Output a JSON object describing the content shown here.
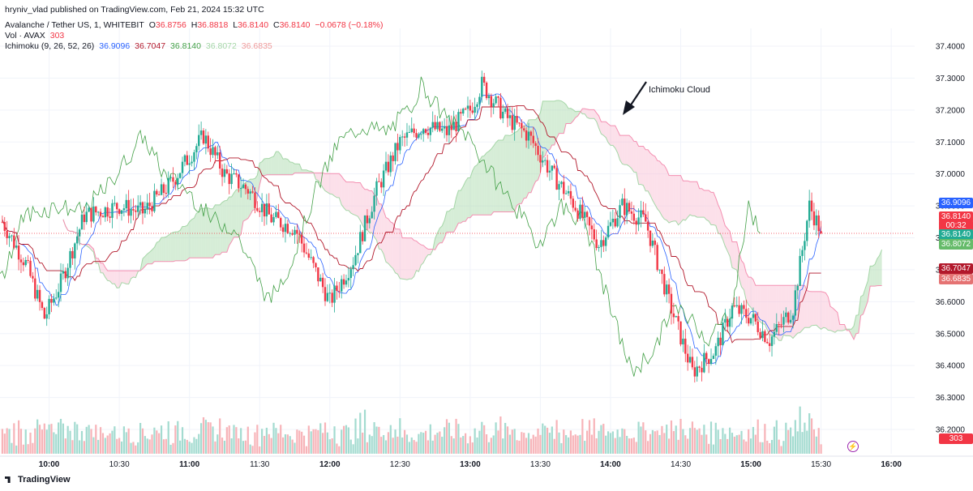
{
  "header": {
    "publisher": "hryniv_vlad published on TradingView.com, Feb 21, 2024 15:32 UTC",
    "symbol": "Avalanche / Tether US, 1, WHITEBIT",
    "open_label": "O",
    "open": "36.8756",
    "high_label": "H",
    "high": "36.8818",
    "low_label": "L",
    "low": "36.8140",
    "close_label": "C",
    "close": "36.8140",
    "change": "−0.0678 (−0.18%)",
    "vol_label": "Vol · AVAX",
    "vol_value": "303",
    "ichimoku_label": "Ichimoku (9, 26, 52, 26)",
    "ichimoku_values": [
      "36.9096",
      "36.7047",
      "36.8140",
      "36.8072",
      "36.6835"
    ]
  },
  "annotation": {
    "text": "Ichimoku Cloud"
  },
  "branding": {
    "logo_text": "TradingView"
  },
  "price_labels": [
    {
      "value": "36.9096",
      "color": "#2962ff"
    },
    {
      "value": "36.8140",
      "color": "#f23645"
    },
    {
      "value": "00:32",
      "color": "#f23645"
    },
    {
      "value": "36.8140",
      "color": "#22ab94"
    },
    {
      "value": "36.8072",
      "color": "#66bb6a"
    },
    {
      "value": "36.7047",
      "color": "#b2182b"
    },
    {
      "value": "36.6835",
      "color": "#e57373"
    },
    {
      "value": "303",
      "color": "#f23645"
    }
  ],
  "colors": {
    "up": "#22ab94",
    "down": "#f23645",
    "conversion": "#2962ff",
    "base": "#b2182b",
    "lagging": "#43a047",
    "cloud_up": "#a5d6a7",
    "cloud_down": "#f8bbd0",
    "vol_up": "#a3dbd0",
    "vol_down": "#f7b3b8"
  },
  "chart_data": {
    "type": "candlestick",
    "interval": "1",
    "ylim": [
      36.2,
      37.4
    ],
    "y_ticks": [
      "37.4000",
      "37.3000",
      "37.2000",
      "37.1000",
      "37.0000",
      "36.9000",
      "36.8000",
      "36.7000",
      "36.6000",
      "36.5000",
      "36.4000",
      "36.3000",
      "36.2000"
    ],
    "x_ticks": [
      "10:00",
      "10:30",
      "11:00",
      "11:30",
      "12:00",
      "12:30",
      "13:00",
      "13:30",
      "14:00",
      "14:30",
      "15:00",
      "15:30",
      "16:00"
    ],
    "x_start": "09:39",
    "x_end": "16:10",
    "anchors": [
      [
        "09:40",
        36.85
      ],
      [
        "09:50",
        36.72
      ],
      [
        "09:58",
        36.55
      ],
      [
        "10:05",
        36.66
      ],
      [
        "10:15",
        36.87
      ],
      [
        "10:30",
        36.9
      ],
      [
        "10:40",
        36.88
      ],
      [
        "10:52",
        36.97
      ],
      [
        "11:06",
        37.12
      ],
      [
        "11:15",
        37.0
      ],
      [
        "11:25",
        36.95
      ],
      [
        "11:35",
        36.86
      ],
      [
        "11:45",
        36.83
      ],
      [
        "12:00",
        36.6
      ],
      [
        "12:10",
        36.73
      ],
      [
        "12:20",
        36.95
      ],
      [
        "12:30",
        37.1
      ],
      [
        "12:40",
        37.15
      ],
      [
        "12:50",
        37.13
      ],
      [
        "13:00",
        37.2
      ],
      [
        "13:05",
        37.28
      ],
      [
        "13:15",
        37.18
      ],
      [
        "13:25",
        37.12
      ],
      [
        "13:35",
        37.0
      ],
      [
        "13:45",
        36.9
      ],
      [
        "13:55",
        36.78
      ],
      [
        "14:05",
        36.9
      ],
      [
        "14:15",
        36.85
      ],
      [
        "14:25",
        36.6
      ],
      [
        "14:35",
        36.38
      ],
      [
        "14:45",
        36.45
      ],
      [
        "14:52",
        36.58
      ],
      [
        "15:00",
        36.55
      ],
      [
        "15:08",
        36.48
      ],
      [
        "15:18",
        36.58
      ],
      [
        "15:25",
        36.9
      ],
      [
        "15:30",
        36.82
      ]
    ],
    "last_price": 36.814,
    "conversion_line_last": 36.9096,
    "base_line_last": 36.7047,
    "lagging_span_last": 36.814,
    "leading_span_a_last": 36.8072,
    "leading_span_b_last": 36.6835,
    "last_volume": 303
  }
}
